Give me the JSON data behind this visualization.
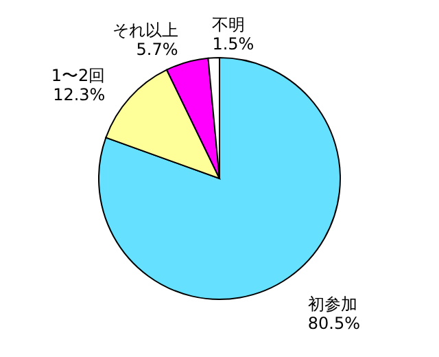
{
  "chart_data": {
    "type": "pie",
    "categories": [
      "初参加",
      "1〜2回",
      "それ以上",
      "不明"
    ],
    "values": [
      80.5,
      12.3,
      5.7,
      1.5
    ],
    "value_labels": [
      "80.5%",
      "12.3%",
      "5.7%",
      "1.5%"
    ],
    "colors": [
      "#66e0ff",
      "#ffff99",
      "#ff00ff",
      "#ffffff"
    ]
  }
}
